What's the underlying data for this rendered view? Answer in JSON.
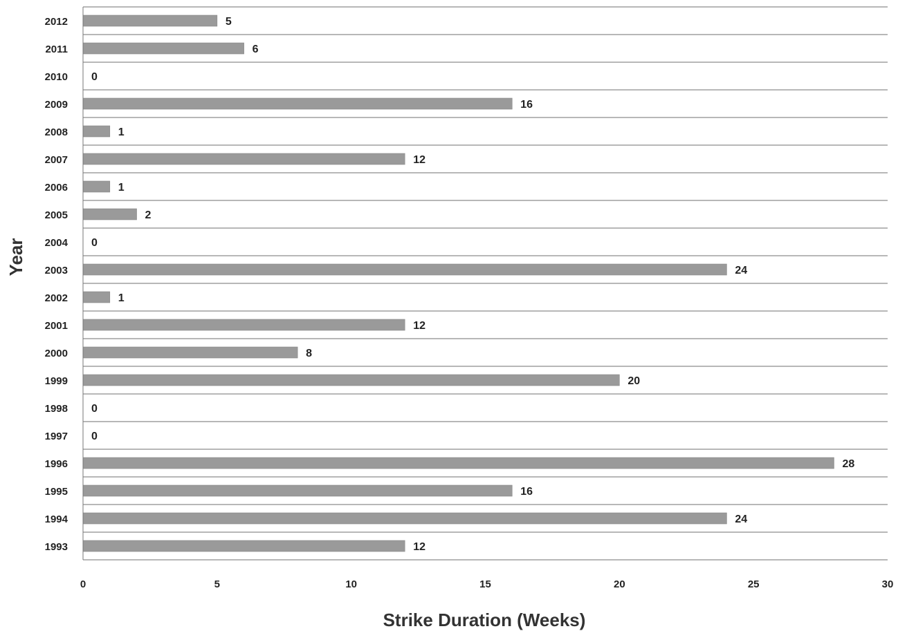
{
  "chart_data": {
    "type": "bar",
    "orientation": "horizontal",
    "categories": [
      "2012",
      "2011",
      "2010",
      "2009",
      "2008",
      "2007",
      "2006",
      "2005",
      "2004",
      "2003",
      "2002",
      "2001",
      "2000",
      "1999",
      "1998",
      "1997",
      "1996",
      "1995",
      "1994",
      "1993"
    ],
    "values": [
      5,
      6,
      0,
      16,
      1,
      12,
      1,
      2,
      0,
      24,
      1,
      12,
      8,
      20,
      0,
      0,
      28,
      16,
      24,
      12
    ],
    "xlabel": "Strike Duration (Weeks)",
    "ylabel": "Year",
    "xlim": [
      0,
      30
    ],
    "xticks": [
      0,
      5,
      10,
      15,
      20,
      25,
      30
    ],
    "grid": true,
    "legend": "none",
    "bar_color": "#9a9a9a"
  }
}
